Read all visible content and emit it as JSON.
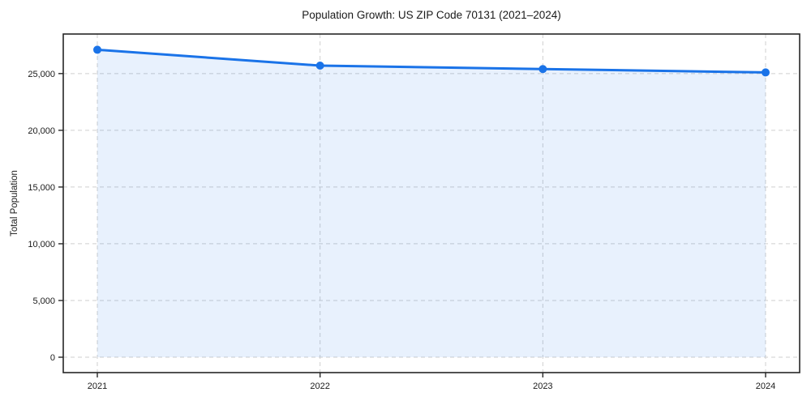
{
  "chart_data": {
    "type": "area",
    "title": "Population Growth: US ZIP Code 70131 (2021–2024)",
    "ylabel": "Total Population",
    "xlabel": "",
    "categories": [
      "2021",
      "2022",
      "2023",
      "2024"
    ],
    "series": [
      {
        "name": "Total Population",
        "values": [
          27100,
          25700,
          25400,
          25100
        ]
      }
    ],
    "yticks": [
      0,
      5000,
      10000,
      15000,
      20000,
      25000
    ],
    "ylim": [
      -1356,
      28486
    ],
    "grid": true,
    "grid_style": "dashed",
    "legend": false,
    "marker": "circle",
    "colors": {
      "line": "#1a73e8",
      "marker": "#1a73e8",
      "fill": "rgba(26,115,232,0.10)",
      "grid": "#cfcfcf",
      "spine": "#262626",
      "text": "#1a1a1a",
      "background": "#ffffff"
    }
  }
}
